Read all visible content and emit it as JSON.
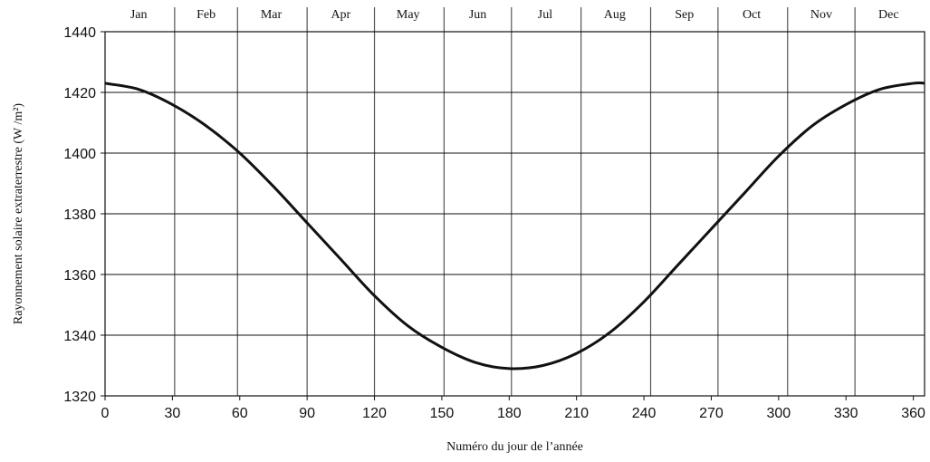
{
  "chart_data": {
    "type": "line",
    "title": "",
    "xlabel": "Numéro du jour de l’année",
    "ylabel": "Rayonnement solaire extraterrestre (W /m²)",
    "xlim": [
      0,
      365
    ],
    "ylim": [
      1320,
      1440
    ],
    "xticks": [
      0,
      30,
      60,
      90,
      120,
      150,
      180,
      210,
      240,
      270,
      300,
      330,
      360
    ],
    "yticks": [
      1320,
      1340,
      1360,
      1380,
      1400,
      1420,
      1440
    ],
    "grid": true,
    "month_boundaries": [
      31,
      59,
      90,
      120,
      151,
      181,
      212,
      243,
      273,
      304,
      334
    ],
    "months": [
      {
        "label": "Jan",
        "center": 15
      },
      {
        "label": "Feb",
        "center": 45
      },
      {
        "label": "Mar",
        "center": 74
      },
      {
        "label": "Apr",
        "center": 105
      },
      {
        "label": "May",
        "center": 135
      },
      {
        "label": "Jun",
        "center": 166
      },
      {
        "label": "Jul",
        "center": 196
      },
      {
        "label": "Aug",
        "center": 227
      },
      {
        "label": "Sep",
        "center": 258
      },
      {
        "label": "Oct",
        "center": 288
      },
      {
        "label": "Nov",
        "center": 319
      },
      {
        "label": "Dec",
        "center": 349
      }
    ],
    "series": [
      {
        "x": [
          0,
          15,
          30,
          45,
          60,
          75,
          90,
          105,
          120,
          135,
          150,
          165,
          180,
          195,
          210,
          225,
          240,
          255,
          270,
          285,
          300,
          315,
          330,
          345,
          360,
          365
        ],
        "y": [
          1423,
          1421,
          1416,
          1409,
          1400,
          1389,
          1377,
          1365,
          1353,
          1343,
          1336,
          1331,
          1329,
          1330,
          1334,
          1341,
          1351,
          1363,
          1375,
          1387,
          1399,
          1409,
          1416,
          1421,
          1423,
          1423
        ]
      }
    ]
  }
}
